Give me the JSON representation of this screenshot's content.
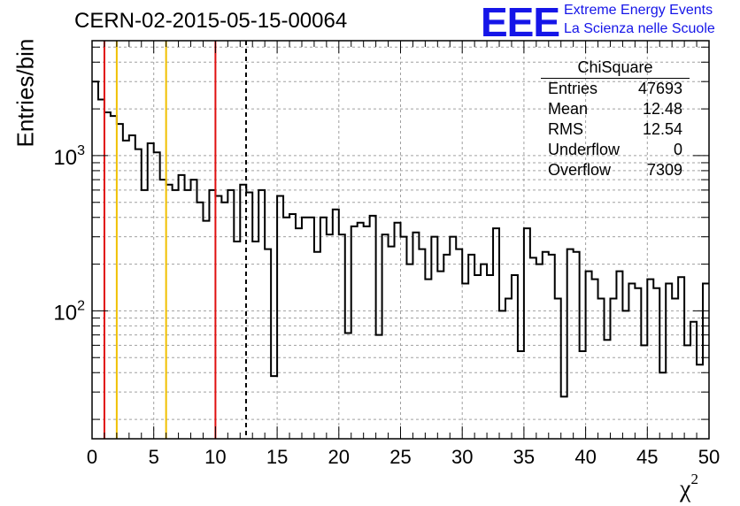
{
  "title": "CERN-02-2015-05-15-00064",
  "logo": {
    "mark": "EEE",
    "line1": "Extreme Energy Events",
    "line2": "La Scienza nelle Scuole",
    "color": "#1515e8"
  },
  "stats": {
    "header": "ChiSquare",
    "rows": [
      {
        "label": "Entries",
        "value": "47693"
      },
      {
        "label": "Mean",
        "value": "12.48"
      },
      {
        "label": "RMS",
        "value": "12.54"
      },
      {
        "label": "Underflow",
        "value": "0"
      },
      {
        "label": "Overflow",
        "value": "7309"
      }
    ]
  },
  "chart_data": {
    "type": "histogram",
    "title": "CERN-02-2015-05-15-00064",
    "xlabel": "χ²",
    "ylabel": "Entries/bin",
    "xlim": [
      0,
      50
    ],
    "ylim": [
      15,
      5500
    ],
    "ylog": true,
    "grid": true,
    "bin_width": 0.5,
    "x_ticks": [
      "0",
      "5",
      "10",
      "15",
      "20",
      "25",
      "30",
      "35",
      "40",
      "45",
      "50"
    ],
    "y_ticks": [
      "10^2",
      "10^3"
    ],
    "values": [
      3000,
      2300,
      1900,
      1800,
      1600,
      1250,
      1350,
      1100,
      600,
      1200,
      1050,
      700,
      650,
      600,
      750,
      600,
      700,
      500,
      380,
      600,
      550,
      500,
      600,
      280,
      650,
      580,
      280,
      600,
      250,
      38,
      550,
      400,
      420,
      340,
      400,
      400,
      240,
      400,
      310,
      450,
      310,
      72,
      350,
      370,
      350,
      410,
      70,
      310,
      260,
      370,
      300,
      200,
      320,
      250,
      160,
      300,
      180,
      230,
      300,
      250,
      150,
      230,
      170,
      200,
      170,
      340,
      100,
      120,
      170,
      55,
      340,
      220,
      200,
      240,
      230,
      120,
      28,
      250,
      240,
      55,
      180,
      160,
      120,
      65,
      120,
      180,
      100,
      150,
      140,
      60,
      160,
      140,
      40,
      150,
      120,
      165,
      60,
      85,
      45,
      150
    ],
    "vertical_lines": [
      {
        "x": 1,
        "color": "#e01010",
        "style": "solid"
      },
      {
        "x": 2,
        "color": "#f0c000",
        "style": "solid"
      },
      {
        "x": 6,
        "color": "#f0c000",
        "style": "solid"
      },
      {
        "x": 10,
        "color": "#e01010",
        "style": "solid"
      },
      {
        "x": 12.48,
        "color": "#000000",
        "style": "dashed"
      }
    ]
  }
}
